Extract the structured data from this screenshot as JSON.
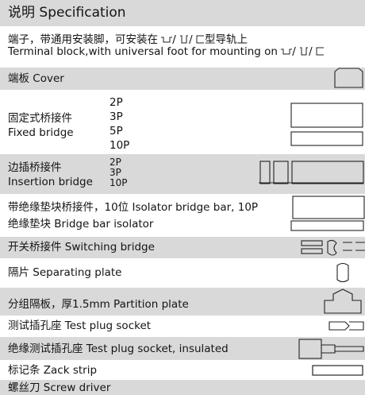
{
  "header": {
    "title": "说明 Specification"
  },
  "intro": {
    "line1_prefix": "端子，带通用安装脚，可安装在",
    "line1_suffix": "型导轨上",
    "line2_prefix": "Terminal block,with universal foot for mounting on",
    "separator": "/"
  },
  "rows": [
    {
      "label": "端板 Cover"
    },
    {
      "label_cn": "固定式桥接件",
      "label_en": "Fixed bridge",
      "sizes": [
        "2P",
        "3P",
        "5P",
        "10P"
      ]
    },
    {
      "label_cn": "边插桥接件",
      "label_en": "Insertion bridge",
      "sizes": [
        "2P",
        "3P",
        "10P"
      ]
    },
    {
      "line1": "带绝缘垫块桥接件，10位  Isolator bridge bar, 10P",
      "line2": "绝缘垫块 Bridge bar isolator"
    },
    {
      "label": "开关桥接件 Switching bridge"
    },
    {
      "label": "隔片 Separating plate"
    },
    {
      "label": "分组隔板，厚1.5mm   Partition plate"
    },
    {
      "label": "测试插孔座 Test plug socket"
    },
    {
      "label": "绝缘测试插孔座 Test plug socket, insulated"
    },
    {
      "label": "标记条 Zack strip"
    },
    {
      "label": "螺丝刀 Screw driver"
    }
  ]
}
